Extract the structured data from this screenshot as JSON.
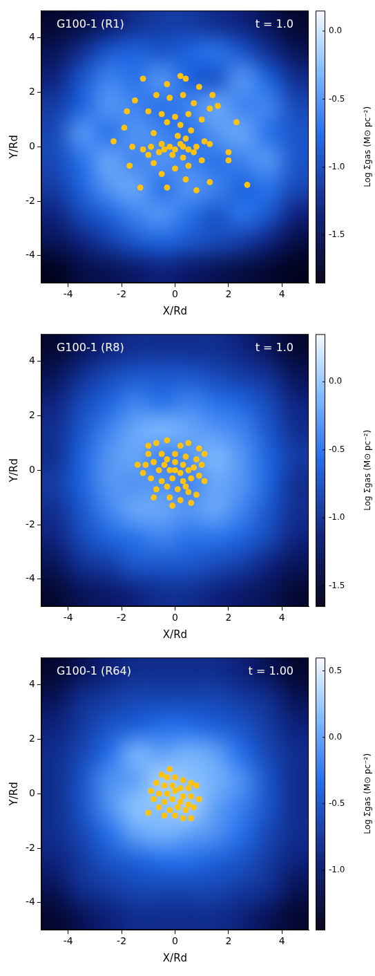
{
  "chart_data": [
    {
      "type": "scatter",
      "title": "G100-1 (R1)",
      "annotation": "t = 1.0",
      "x_label": "X/Rd",
      "y_label": "Y/Rd",
      "xlim": [
        -5,
        5
      ],
      "ylim": [
        -5,
        5
      ],
      "xticks": [
        -4,
        -2,
        0,
        2,
        4
      ],
      "yticks": [
        -4,
        -2,
        0,
        2,
        4
      ],
      "grid": false,
      "series": [
        {
          "color": "#ffc20e",
          "marker": "circle",
          "points": [
            [
              -1.2,
              2.5
            ],
            [
              -0.3,
              2.3
            ],
            [
              0.2,
              2.6
            ],
            [
              0.4,
              2.5
            ],
            [
              0.9,
              2.2
            ],
            [
              -0.7,
              1.9
            ],
            [
              -1.5,
              1.7
            ],
            [
              -1.8,
              1.3
            ],
            [
              -0.2,
              1.8
            ],
            [
              0.3,
              1.9
            ],
            [
              0.7,
              1.6
            ],
            [
              1.3,
              1.4
            ],
            [
              1.6,
              1.5
            ],
            [
              -1.0,
              1.3
            ],
            [
              -0.5,
              1.2
            ],
            [
              0.0,
              1.1
            ],
            [
              0.5,
              1.2
            ],
            [
              1.0,
              1.0
            ],
            [
              -0.3,
              0.9
            ],
            [
              0.2,
              0.8
            ],
            [
              0.6,
              0.6
            ],
            [
              -0.8,
              0.5
            ],
            [
              0.1,
              0.4
            ],
            [
              0.4,
              0.3
            ],
            [
              1.1,
              0.2
            ],
            [
              -1.6,
              0.0
            ],
            [
              -1.2,
              -0.1
            ],
            [
              -0.9,
              0.0
            ],
            [
              -0.5,
              0.1
            ],
            [
              -0.2,
              0.0
            ],
            [
              0.2,
              0.1
            ],
            [
              0.5,
              -0.1
            ],
            [
              0.8,
              0.0
            ],
            [
              1.3,
              0.1
            ],
            [
              -1.0,
              -0.3
            ],
            [
              -0.6,
              -0.2
            ],
            [
              -0.1,
              -0.3
            ],
            [
              0.3,
              -0.4
            ],
            [
              0.7,
              -0.2
            ],
            [
              2.0,
              -0.2
            ],
            [
              -2.3,
              0.2
            ],
            [
              -1.7,
              -0.7
            ],
            [
              -0.8,
              -0.6
            ],
            [
              0.0,
              -0.8
            ],
            [
              0.5,
              -0.7
            ],
            [
              1.0,
              -0.5
            ],
            [
              2.0,
              -0.5
            ],
            [
              -0.5,
              -1.0
            ],
            [
              0.4,
              -1.2
            ],
            [
              -1.3,
              -1.5
            ],
            [
              -0.3,
              -1.5
            ],
            [
              0.8,
              -1.6
            ],
            [
              1.3,
              -1.3
            ],
            [
              2.7,
              -1.4
            ],
            [
              2.3,
              0.9
            ],
            [
              1.4,
              1.9
            ],
            [
              -1.9,
              0.7
            ],
            [
              0.0,
              -0.1
            ],
            [
              -0.4,
              -0.1
            ],
            [
              0.3,
              0.0
            ]
          ]
        }
      ],
      "heatmap": {
        "x": [
          -4.5,
          -3.5,
          -2.5,
          -1.5,
          -0.5,
          0.5,
          1.5,
          2.5,
          3.5,
          4.5
        ],
        "y": [
          4.5,
          3.5,
          2.5,
          1.5,
          0.5,
          -0.5,
          -1.5,
          -2.5,
          -3.5,
          -4.5
        ],
        "cells": [
          [
            -1.7,
            -1.6,
            -1.4,
            -1.2,
            -1.1,
            -1.1,
            -1.2,
            -1.3,
            -1.5,
            -1.7
          ],
          [
            -1.5,
            -1.2,
            -0.9,
            -0.8,
            -0.9,
            -0.8,
            -0.7,
            -0.9,
            -1.2,
            -1.5
          ],
          [
            -1.3,
            -0.9,
            -0.6,
            -0.7,
            -0.5,
            -0.8,
            -0.9,
            -0.5,
            -0.8,
            -1.2
          ],
          [
            -1.1,
            -0.8,
            -0.5,
            -0.6,
            -0.7,
            -0.6,
            -0.4,
            -0.6,
            -0.6,
            -1.0
          ],
          [
            -1.0,
            -0.5,
            -0.7,
            -0.5,
            -0.6,
            -0.7,
            -0.5,
            -0.4,
            -0.7,
            -0.9
          ],
          [
            -1.0,
            -0.7,
            -0.4,
            -0.6,
            -0.5,
            -0.6,
            -0.7,
            -0.6,
            -0.5,
            -0.9
          ],
          [
            -1.1,
            -0.8,
            -0.5,
            -0.4,
            -0.7,
            -0.5,
            -0.6,
            -0.8,
            -0.7,
            -1.0
          ],
          [
            -1.3,
            -1.0,
            -0.8,
            -0.6,
            -0.5,
            -0.7,
            -0.9,
            -0.7,
            -0.9,
            -1.3
          ],
          [
            -1.5,
            -1.3,
            -1.1,
            -0.9,
            -0.8,
            -0.9,
            -1.0,
            -1.1,
            -1.3,
            -1.6
          ],
          [
            -1.8,
            -1.6,
            -1.5,
            -1.4,
            -1.3,
            -1.4,
            -1.5,
            -1.6,
            -1.7,
            -1.8
          ]
        ],
        "colorbar": {
          "label": "Log Σgas (M⊙ pc⁻²)",
          "range": [
            -1.85,
            0.15
          ],
          "ticks": [
            {
              "value": 0,
              "label": "0.0"
            },
            -0.5,
            {
              "value": -1,
              "label": "-1.0"
            },
            -1.5
          ]
        }
      }
    },
    {
      "type": "scatter",
      "title": "G100-1 (R8)",
      "annotation": "t = 1.0",
      "x_label": "X/Rd",
      "y_label": "Y/Rd",
      "xlim": [
        -5,
        5
      ],
      "ylim": [
        -5,
        5
      ],
      "xticks": [
        -4,
        -2,
        0,
        2,
        4
      ],
      "yticks": [
        -4,
        -2,
        0,
        2,
        4
      ],
      "grid": false,
      "series": [
        {
          "color": "#ffc20e",
          "marker": "circle",
          "points": [
            [
              -0.7,
              1.0
            ],
            [
              -0.3,
              1.1
            ],
            [
              0.2,
              0.9
            ],
            [
              0.5,
              1.0
            ],
            [
              0.9,
              0.8
            ],
            [
              1.1,
              0.6
            ],
            [
              -1.0,
              0.6
            ],
            [
              -0.5,
              0.6
            ],
            [
              0.0,
              0.6
            ],
            [
              0.4,
              0.5
            ],
            [
              0.8,
              0.4
            ],
            [
              -1.4,
              0.2
            ],
            [
              -1.1,
              0.2
            ],
            [
              -0.8,
              0.3
            ],
            [
              -0.4,
              0.2
            ],
            [
              0.0,
              0.3
            ],
            [
              0.3,
              0.2
            ],
            [
              0.7,
              0.1
            ],
            [
              1.0,
              0.2
            ],
            [
              -1.2,
              -0.1
            ],
            [
              -0.6,
              0.0
            ],
            [
              -0.2,
              0.0
            ],
            [
              0.2,
              -0.1
            ],
            [
              0.5,
              0.0
            ],
            [
              0.9,
              -0.2
            ],
            [
              -0.9,
              -0.3
            ],
            [
              -0.5,
              -0.4
            ],
            [
              -0.1,
              -0.3
            ],
            [
              0.3,
              -0.4
            ],
            [
              0.6,
              -0.3
            ],
            [
              1.1,
              -0.4
            ],
            [
              -0.7,
              -0.7
            ],
            [
              -0.3,
              -0.6
            ],
            [
              0.1,
              -0.7
            ],
            [
              0.5,
              -0.8
            ],
            [
              -0.8,
              -1.0
            ],
            [
              -0.2,
              -1.0
            ],
            [
              0.2,
              -1.1
            ],
            [
              0.6,
              -1.2
            ],
            [
              -0.1,
              -1.3
            ],
            [
              0.0,
              0.0
            ],
            [
              -0.3,
              0.4
            ],
            [
              0.4,
              -0.6
            ],
            [
              -1.0,
              0.9
            ],
            [
              0.8,
              -0.9
            ]
          ]
        }
      ],
      "heatmap": {
        "x": [
          -4.5,
          -3.5,
          -2.5,
          -1.5,
          -0.5,
          0.5,
          1.5,
          2.5,
          3.5,
          4.5
        ],
        "y": [
          4.5,
          3.5,
          2.5,
          1.5,
          0.5,
          -0.5,
          -1.5,
          -2.5,
          -3.5,
          -4.5
        ],
        "cells": [
          [
            -1.5,
            -1.3,
            -1.1,
            -1.0,
            -1.0,
            -1.0,
            -1.0,
            -1.1,
            -1.3,
            -1.5
          ],
          [
            -1.3,
            -1.0,
            -0.8,
            -0.7,
            -0.7,
            -0.7,
            -0.8,
            -0.9,
            -1.0,
            -1.3
          ],
          [
            -1.1,
            -0.8,
            -0.6,
            -0.4,
            -0.5,
            -0.4,
            -0.5,
            -0.6,
            -0.8,
            -1.1
          ],
          [
            -1.0,
            -0.7,
            -0.4,
            -0.2,
            -0.1,
            -0.2,
            -0.3,
            -0.4,
            -0.7,
            -1.0
          ],
          [
            -1.0,
            -0.6,
            -0.3,
            -0.2,
            -0.4,
            -0.3,
            -0.1,
            -0.3,
            -0.6,
            -0.9
          ],
          [
            -0.9,
            -0.6,
            -0.3,
            -0.3,
            -0.3,
            -0.4,
            -0.2,
            -0.3,
            -0.6,
            -1.0
          ],
          [
            -1.0,
            -0.7,
            -0.4,
            -0.2,
            -0.2,
            -0.3,
            -0.2,
            -0.4,
            -0.7,
            -1.0
          ],
          [
            -1.1,
            -0.8,
            -0.6,
            -0.5,
            -0.4,
            -0.5,
            -0.5,
            -0.6,
            -0.8,
            -1.1
          ],
          [
            -1.3,
            -1.0,
            -0.9,
            -0.7,
            -0.7,
            -0.7,
            -0.8,
            -0.9,
            -1.1,
            -1.3
          ],
          [
            -1.5,
            -1.3,
            -1.2,
            -1.1,
            -1.0,
            -1.0,
            -1.1,
            -1.2,
            -1.3,
            -1.5
          ]
        ],
        "colorbar": {
          "label": "Log Σgas (M⊙ pc⁻²)",
          "range": [
            -1.65,
            0.35
          ],
          "ticks": [
            {
              "value": 0,
              "label": "0.0"
            },
            -0.5,
            {
              "value": -1,
              "label": "-1.0"
            },
            -1.5
          ]
        }
      }
    },
    {
      "type": "scatter",
      "title": "G100-1 (R64)",
      "annotation": "t = 1.00",
      "x_label": "X/Rd",
      "y_label": "Y/Rd",
      "xlim": [
        -5,
        5
      ],
      "ylim": [
        -5,
        5
      ],
      "xticks": [
        -4,
        -2,
        0,
        2,
        4
      ],
      "yticks": [
        -4,
        -2,
        0,
        2,
        4
      ],
      "grid": false,
      "series": [
        {
          "color": "#ffc20e",
          "marker": "circle",
          "points": [
            [
              -0.5,
              0.7
            ],
            [
              -0.3,
              0.6
            ],
            [
              0.0,
              0.6
            ],
            [
              0.3,
              0.5
            ],
            [
              0.6,
              0.4
            ],
            [
              -0.7,
              0.4
            ],
            [
              -0.4,
              0.3
            ],
            [
              -0.1,
              0.3
            ],
            [
              0.2,
              0.2
            ],
            [
              0.5,
              0.2
            ],
            [
              0.8,
              0.3
            ],
            [
              -0.9,
              0.1
            ],
            [
              -0.6,
              0.0
            ],
            [
              -0.3,
              0.0
            ],
            [
              0.0,
              0.1
            ],
            [
              0.3,
              -0.1
            ],
            [
              0.6,
              -0.1
            ],
            [
              -0.8,
              -0.2
            ],
            [
              -0.4,
              -0.3
            ],
            [
              -0.1,
              -0.2
            ],
            [
              0.2,
              -0.3
            ],
            [
              0.5,
              -0.4
            ],
            [
              -0.6,
              -0.5
            ],
            [
              -0.2,
              -0.6
            ],
            [
              0.1,
              -0.5
            ],
            [
              0.4,
              -0.6
            ],
            [
              0.7,
              -0.5
            ],
            [
              -0.4,
              -0.8
            ],
            [
              0.0,
              -0.8
            ],
            [
              0.3,
              -0.9
            ],
            [
              0.6,
              -0.9
            ],
            [
              -1.0,
              -0.7
            ],
            [
              0.9,
              -0.2
            ],
            [
              -0.2,
              0.9
            ]
          ]
        }
      ],
      "heatmap": {
        "x": [
          -4.5,
          -3.5,
          -2.5,
          -1.5,
          -0.5,
          0.5,
          1.5,
          2.5,
          3.5,
          4.5
        ],
        "y": [
          4.5,
          3.5,
          2.5,
          1.5,
          0.5,
          -0.5,
          -1.5,
          -2.5,
          -3.5,
          -4.5
        ],
        "cells": [
          [
            -1.3,
            -1.1,
            -0.9,
            -0.8,
            -0.8,
            -0.8,
            -0.8,
            -0.9,
            -1.1,
            -1.3
          ],
          [
            -1.1,
            -0.8,
            -0.7,
            -0.6,
            -0.6,
            -0.6,
            -0.6,
            -0.7,
            -0.8,
            -1.1
          ],
          [
            -0.9,
            -0.7,
            -0.5,
            -0.4,
            -0.3,
            -0.3,
            -0.4,
            -0.5,
            -0.7,
            -0.9
          ],
          [
            -0.8,
            -0.6,
            -0.3,
            0.1,
            0.0,
            0.1,
            0.0,
            -0.3,
            -0.6,
            -0.8
          ],
          [
            -0.8,
            -0.5,
            -0.1,
            0.0,
            0.3,
            0.2,
            0.1,
            -0.1,
            -0.5,
            -0.8
          ],
          [
            -0.8,
            -0.5,
            -0.1,
            0.2,
            0.2,
            0.3,
            0.0,
            -0.2,
            -0.5,
            -0.8
          ],
          [
            -0.8,
            -0.6,
            -0.3,
            0.0,
            0.1,
            0.0,
            -0.1,
            -0.3,
            -0.6,
            -0.8
          ],
          [
            -0.9,
            -0.7,
            -0.5,
            -0.4,
            -0.3,
            -0.3,
            -0.4,
            -0.5,
            -0.7,
            -0.9
          ],
          [
            -1.1,
            -0.8,
            -0.7,
            -0.6,
            -0.6,
            -0.6,
            -0.6,
            -0.7,
            -0.8,
            -1.1
          ],
          [
            -1.3,
            -1.1,
            -0.9,
            -0.8,
            -0.8,
            -0.8,
            -0.8,
            -0.9,
            -1.1,
            -1.3
          ]
        ],
        "colorbar": {
          "label": "Log Σgas (M⊙ pc⁻²)",
          "range": [
            -1.45,
            0.6
          ],
          "ticks": [
            0.5,
            {
              "value": 0,
              "label": "0.0"
            },
            -0.5,
            {
              "value": -1,
              "label": "-1.0"
            }
          ]
        }
      }
    }
  ]
}
